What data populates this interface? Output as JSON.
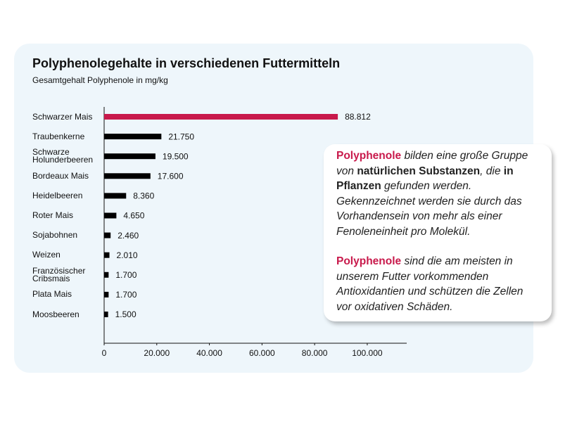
{
  "chart_data": {
    "type": "hbar",
    "title": "Polyphenolegehalte in verschiedenen Futtermitteln",
    "subtitle": "Gesamtgehalt Polyphenole in mg/kg",
    "categories": [
      "Schwarzer Mais",
      "Traubenkerne",
      "Schwarze Holunderbeeren",
      "Bordeaux Mais",
      "Heidelbeeren",
      "Roter Mais",
      "Sojabohnen",
      "Weizen",
      "Französischer Cribsmais",
      "Plata Mais",
      "Moosbeeren"
    ],
    "values": [
      88812,
      21750,
      19500,
      17600,
      8360,
      4650,
      2460,
      2010,
      1700,
      1700,
      1500
    ],
    "value_labels": [
      "88.812",
      "21.750",
      "19.500",
      "17.600",
      "8.360",
      "4.650",
      "2.460",
      "2.010",
      "1.700",
      "1.700",
      "1.500"
    ],
    "colors": [
      "#c8194b",
      "#000000",
      "#000000",
      "#000000",
      "#000000",
      "#000000",
      "#000000",
      "#000000",
      "#000000",
      "#000000",
      "#000000"
    ],
    "xlim": [
      0,
      115000
    ],
    "xticks": [
      0,
      {
        "value": 20000,
        "label": "20.000"
      },
      {
        "value": 40000,
        "label": "40.000"
      },
      {
        "value": 60000,
        "label": "60.000"
      },
      {
        "value": 80000,
        "label": "80.000"
      },
      {
        "value": 100000,
        "label": "100.000"
      }
    ]
  },
  "callout": {
    "paragraphs": [
      [
        {
          "text": "Polyphenole",
          "style": "highlight"
        },
        {
          "text": " bilden eine große Gruppe von ",
          "style": "italic"
        },
        {
          "text": "natürlichen Substanzen",
          "style": "bold"
        },
        {
          "text": ", die ",
          "style": "italic"
        },
        {
          "text": "in Pflanzen",
          "style": "bold"
        },
        {
          "text": " gefunden werden. Gekennzeichnet werden sie durch das Vorhandensein von mehr als einer Fenoleneinheit pro Molekül.",
          "style": "italic"
        }
      ],
      [
        {
          "text": "Polyphenole",
          "style": "highlight"
        },
        {
          "text": " sind die am meisten in unserem Futter vorkommenden Antioxidantien und schützen die Zellen vor oxidativen Schäden.",
          "style": "italic"
        }
      ]
    ]
  }
}
